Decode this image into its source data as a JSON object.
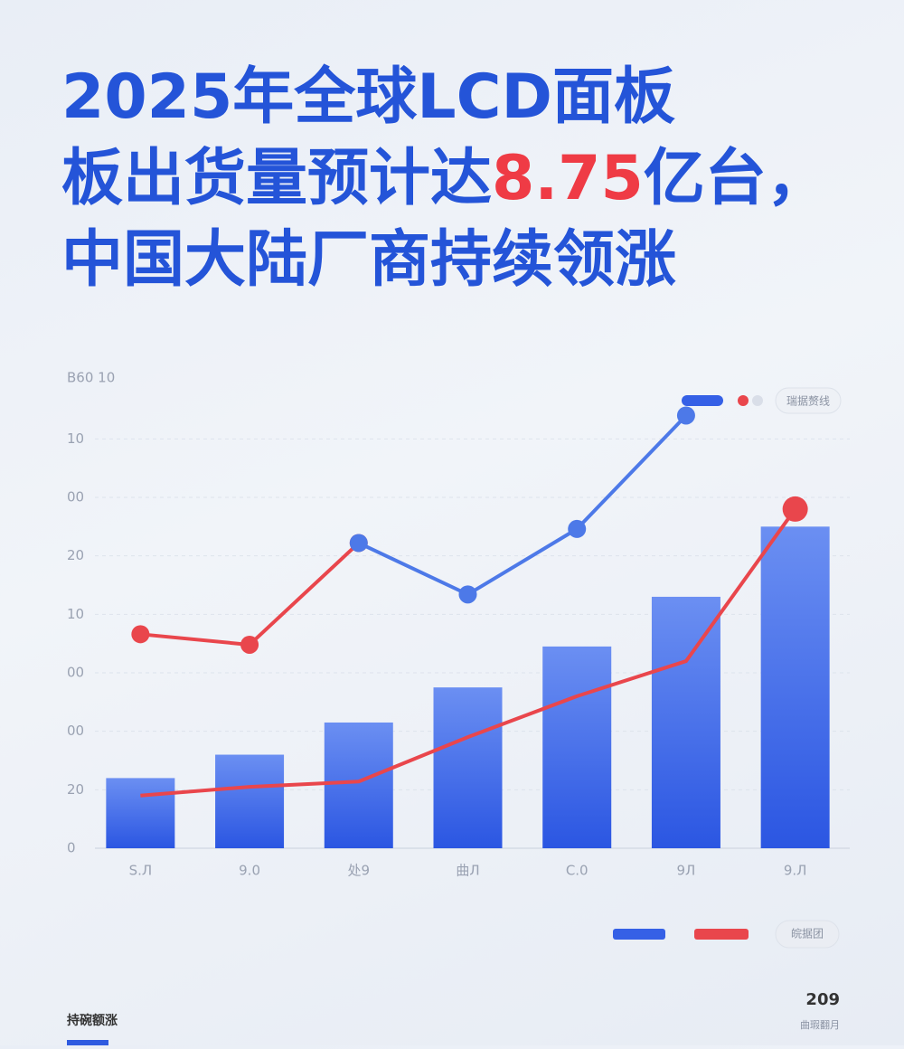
{
  "header": {
    "title_line1": "2025年全球LCD面板",
    "title_line2": [
      "板出货量预计达",
      "8.75",
      "亿台，"
    ],
    "title_line3": "中国大陆厂商持续领涨"
  },
  "chart_data": {
    "type": "bar",
    "axis_title": "B60 10",
    "categories": [
      "S.Л",
      "9.0",
      "处9",
      "曲Л",
      "C.0",
      "9Л",
      "9.Л"
    ],
    "ylim": [
      0,
      75
    ],
    "yticks": [
      0,
      {
        "value": 10,
        "label": "20"
      },
      {
        "value": 20,
        "label": "00"
      },
      {
        "value": 30,
        "label": "00"
      },
      {
        "value": 40,
        "label": "10"
      },
      {
        "value": 50,
        "label": "20"
      },
      {
        "value": 60,
        "label": "00"
      },
      {
        "value": 70,
        "label": "10"
      }
    ],
    "grid": true,
    "series": [
      {
        "type": "bar",
        "color": "#3560e6",
        "values": [
          12,
          16,
          21.5,
          27.5,
          34.5,
          43,
          55
        ]
      },
      {
        "type": "line",
        "color": "#e9464c",
        "values": [
          36.6,
          34.8,
          52.2,
          null,
          null,
          null,
          null
        ]
      },
      {
        "type": "line",
        "color": "#4d79e8",
        "values": [
          null,
          null,
          52.2,
          43.4,
          54.6,
          74,
          null
        ]
      },
      {
        "type": "line",
        "color": "#e9464c",
        "values": [
          9,
          10.5,
          11.4,
          19,
          26,
          32,
          58
        ]
      }
    ],
    "legend_top": "瑞据赘线",
    "legend_bottom": "皖据团"
  },
  "footer": {
    "left": "持碗额涨",
    "right_value": 209,
    "right_label": "曲瑕翻月"
  }
}
